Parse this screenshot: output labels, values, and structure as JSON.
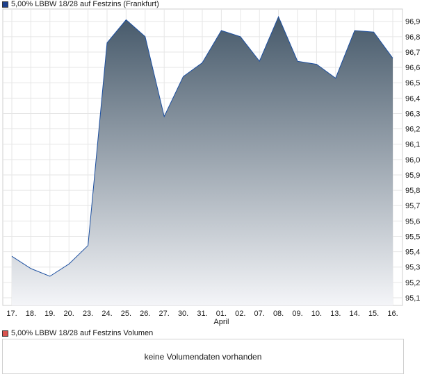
{
  "legend": {
    "price_label": "5,00% LBBW 18/28 auf Festzins (Frankfurt)",
    "volume_label": "5,00% LBBW 18/28 auf Festzins Volumen",
    "price_color": "#1c3f8c",
    "volume_color": "#d9534f"
  },
  "volume": {
    "empty_message": "keine Volumendaten vorhanden"
  },
  "chart_data": {
    "type": "area",
    "categories": [
      "17.",
      "18.",
      "19.",
      "20.",
      "23.",
      "24.",
      "25.",
      "26.",
      "27.",
      "30.",
      "31.",
      "01.",
      "02.",
      "07.",
      "08.",
      "09.",
      "10.",
      "13.",
      "14.",
      "15.",
      "16."
    ],
    "month_label": "April",
    "month_label_under": "01.",
    "series": [
      {
        "values": [
          95.37,
          95.29,
          95.24,
          95.32,
          95.44,
          96.76,
          96.91,
          96.8,
          96.28,
          96.54,
          96.63,
          96.84,
          96.8,
          96.64,
          96.93,
          96.64,
          96.62,
          96.53,
          96.84,
          96.83,
          96.66
        ]
      }
    ],
    "ylim": [
      95.05,
      96.98
    ],
    "yticks": [
      "96,9",
      "96,8",
      "96,7",
      "96,6",
      "96,5",
      "96,4",
      "96,3",
      "96,2",
      "96,1",
      "96,0",
      "95,9",
      "95,8",
      "95,7",
      "95,6",
      "95,5",
      "95,4",
      "95,3",
      "95,2",
      "95,1"
    ],
    "ytick_values": [
      96.9,
      96.8,
      96.7,
      96.6,
      96.5,
      96.4,
      96.3,
      96.2,
      96.1,
      96.0,
      95.9,
      95.8,
      95.7,
      95.6,
      95.5,
      95.4,
      95.3,
      95.2,
      95.1
    ],
    "xlabel": "",
    "ylabel": "",
    "grid": true,
    "line_color": "#1c4fa0",
    "fill_top_color": "#46596a",
    "fill_bottom_color": "#f4f5f8"
  }
}
